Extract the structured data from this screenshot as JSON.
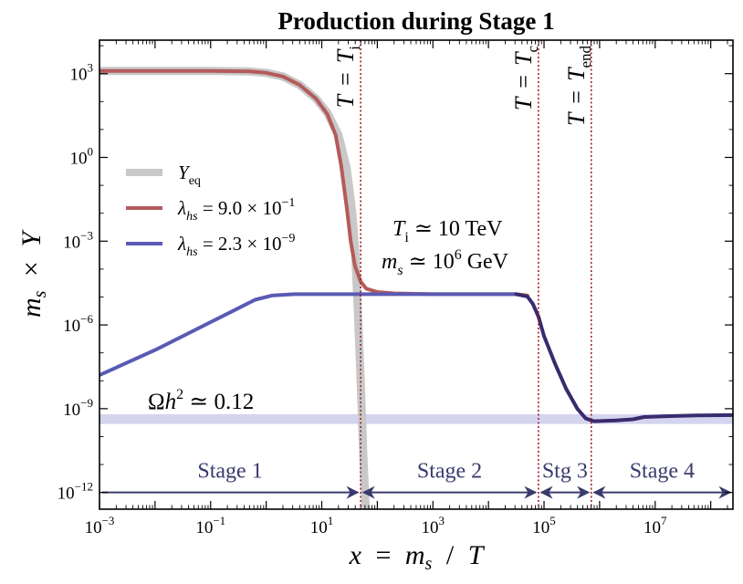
{
  "chart_data": {
    "type": "line",
    "title": "Production during Stage 1",
    "xlabel": {
      "var": "x",
      "eq": "=",
      "num": "m",
      "num_sub": "s",
      "slash": "/",
      "den": "T"
    },
    "ylabel": {
      "var": "m",
      "var_sub": "s",
      "times": "×",
      "y": "Y"
    },
    "x_scale": "log",
    "y_scale": "log",
    "xlim_exp": [
      -3,
      8.4
    ],
    "ylim_exp": [
      -12.6,
      4.2
    ],
    "x_ticks": [
      {
        "base": "10",
        "exp": "−3",
        "value_exp": -3
      },
      {
        "base": "10",
        "exp": "−1",
        "value_exp": -1
      },
      {
        "base": "10",
        "exp": "1",
        "value_exp": 1
      },
      {
        "base": "10",
        "exp": "3",
        "value_exp": 3
      },
      {
        "base": "10",
        "exp": "5",
        "value_exp": 5
      },
      {
        "base": "10",
        "exp": "7",
        "value_exp": 7
      }
    ],
    "y_ticks": [
      {
        "base": "10",
        "exp": "3",
        "value_exp": 3
      },
      {
        "base": "10",
        "exp": "0",
        "value_exp": 0
      },
      {
        "base": "10",
        "exp": "−3",
        "value_exp": -3
      },
      {
        "base": "10",
        "exp": "−6",
        "value_exp": -6
      },
      {
        "base": "10",
        "exp": "−9",
        "value_exp": -9
      },
      {
        "base": "10",
        "exp": "−12",
        "value_exp": -12
      }
    ],
    "series": [
      {
        "name": "Y_eq",
        "legend": {
          "sym": "Y",
          "sub": "eq",
          "rest": ""
        },
        "color": "#c8c8c8",
        "points_log10": [
          [
            -3,
            3.1
          ],
          [
            -1,
            3.1
          ],
          [
            -0.3,
            3.08
          ],
          [
            0,
            3.03
          ],
          [
            0.3,
            2.9
          ],
          [
            0.6,
            2.6
          ],
          [
            0.9,
            2.1
          ],
          [
            1.1,
            1.6
          ],
          [
            1.3,
            0.8
          ],
          [
            1.45,
            -0.4
          ],
          [
            1.55,
            -2.0
          ],
          [
            1.6,
            -3.3
          ],
          [
            1.65,
            -5.5
          ],
          [
            1.7,
            -8.0
          ],
          [
            1.75,
            -10.8
          ],
          [
            1.79,
            -12.6
          ]
        ]
      },
      {
        "name": "lambda_hs = 9.0e-1",
        "legend": {
          "sym": "λ",
          "sub": "hs",
          "rest": " = 9.0 × 10",
          "sup": "−1"
        },
        "color": "#b55a5a",
        "points_log10": [
          [
            -3,
            3.1
          ],
          [
            -1,
            3.1
          ],
          [
            -0.3,
            3.08
          ],
          [
            0,
            3.03
          ],
          [
            0.3,
            2.9
          ],
          [
            0.6,
            2.6
          ],
          [
            0.9,
            2.1
          ],
          [
            1.1,
            1.55
          ],
          [
            1.25,
            0.8
          ],
          [
            1.35,
            -0.3
          ],
          [
            1.45,
            -1.8
          ],
          [
            1.52,
            -3.0
          ],
          [
            1.6,
            -3.9
          ],
          [
            1.7,
            -4.45
          ],
          [
            1.8,
            -4.7
          ],
          [
            2,
            -4.82
          ],
          [
            2.3,
            -4.87
          ],
          [
            3,
            -4.9
          ],
          [
            4.5,
            -4.9
          ],
          [
            4.7,
            -4.95
          ]
        ]
      },
      {
        "name": "lambda_hs = 2.3e-9",
        "legend": {
          "sym": "λ",
          "sub": "hs",
          "rest": " = 2.3 × 10",
          "sup": "−9"
        },
        "color": "#5a5ab4",
        "points_log10": [
          [
            -3,
            -7.8
          ],
          [
            -2,
            -6.9
          ],
          [
            -1,
            -5.9
          ],
          [
            -0.2,
            -5.1
          ],
          [
            0.1,
            -4.95
          ],
          [
            0.5,
            -4.9
          ],
          [
            2,
            -4.9
          ],
          [
            3,
            -4.9
          ],
          [
            4.5,
            -4.9
          ]
        ]
      },
      {
        "name": "combined tail",
        "color": "#3a2a6e",
        "points_log10": [
          [
            4.5,
            -4.9
          ],
          [
            4.7,
            -4.98
          ],
          [
            4.8,
            -5.25
          ],
          [
            4.9,
            -5.7
          ],
          [
            5.0,
            -6.4
          ],
          [
            5.2,
            -7.4
          ],
          [
            5.4,
            -8.3
          ],
          [
            5.6,
            -9.0
          ],
          [
            5.75,
            -9.35
          ],
          [
            5.9,
            -9.45
          ],
          [
            6.3,
            -9.42
          ],
          [
            6.6,
            -9.38
          ],
          [
            6.8,
            -9.3
          ],
          [
            7.2,
            -9.27
          ],
          [
            7.8,
            -9.24
          ],
          [
            8.4,
            -9.23
          ]
        ]
      }
    ],
    "vlines": [
      {
        "x_log10": 1.7,
        "label": {
          "lhs": "T",
          "eq": "=",
          "rhs": "T",
          "rhs_sub": "i"
        }
      },
      {
        "x_log10": 4.9,
        "label": {
          "lhs": "T",
          "eq": "=",
          "rhs": "T",
          "rhs_sub": "c"
        }
      },
      {
        "x_log10": 5.85,
        "label": {
          "lhs": "T",
          "eq": "=",
          "rhs": "T",
          "rhs_sub": "end"
        }
      }
    ],
    "band": {
      "y_log10": [
        -9.55,
        -9.2
      ],
      "color": "#d4d4ef",
      "label": {
        "pre": "Ω",
        "h": "h",
        "sup": "2",
        "rest": " ≃ 0.12"
      }
    },
    "annotations": [
      {
        "lhs": "T",
        "lhs_sub": "i",
        "rel": " ≃ 10 TeV"
      },
      {
        "lhs": "m",
        "lhs_sub": "s",
        "rel": " ≃ 10",
        "sup": "6",
        "unit": " GeV"
      }
    ],
    "stages": [
      {
        "label": "Stage 1",
        "from_log10": -3,
        "to_log10": 1.7
      },
      {
        "label": "Stage 2",
        "from_log10": 1.7,
        "to_log10": 4.9
      },
      {
        "label": "Stg 3",
        "from_log10": 4.9,
        "to_log10": 5.85
      },
      {
        "label": "Stage 4",
        "from_log10": 5.85,
        "to_log10": 8.4
      }
    ],
    "stage_arrow_y_log10": -12,
    "stage_color": "#3a3a6e",
    "vline_color": "#a02020"
  }
}
